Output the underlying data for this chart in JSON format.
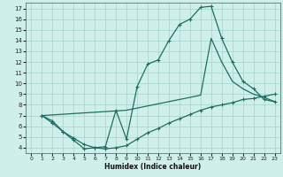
{
  "xlabel": "Humidex (Indice chaleur)",
  "bg_color": "#cff0ea",
  "grid_color": "#aad8d0",
  "line_color": "#1a6e64",
  "xlim": [
    -0.5,
    23.5
  ],
  "ylim": [
    3.5,
    17.5
  ],
  "xticks": [
    0,
    1,
    2,
    3,
    4,
    5,
    6,
    7,
    8,
    9,
    10,
    11,
    12,
    13,
    14,
    15,
    16,
    17,
    18,
    19,
    20,
    21,
    22,
    23
  ],
  "yticks": [
    4,
    5,
    6,
    7,
    8,
    9,
    10,
    11,
    12,
    13,
    14,
    15,
    16,
    17
  ],
  "curve1_x": [
    1,
    2,
    3,
    4,
    5,
    6,
    7,
    8,
    9,
    10,
    11,
    12,
    13,
    14,
    15,
    16,
    17,
    18,
    19,
    20,
    21,
    22,
    23
  ],
  "curve1_y": [
    7.0,
    6.5,
    5.5,
    4.7,
    3.9,
    4.0,
    4.1,
    7.5,
    4.8,
    9.7,
    11.8,
    12.2,
    14.0,
    15.5,
    16.0,
    17.1,
    17.2,
    14.2,
    12.0,
    10.2,
    9.5,
    8.5,
    8.3
  ],
  "curve2_x": [
    1,
    9,
    10,
    11,
    12,
    13,
    14,
    15,
    16,
    17,
    18,
    19,
    20,
    21,
    22,
    23
  ],
  "curve2_y": [
    7.0,
    7.5,
    7.7,
    7.9,
    8.1,
    8.3,
    8.5,
    8.7,
    8.9,
    14.2,
    12.0,
    10.2,
    9.5,
    9.0,
    8.7,
    8.3
  ],
  "curve3_x": [
    1,
    2,
    3,
    4,
    5,
    6,
    7,
    8,
    9,
    10,
    11,
    12,
    13,
    14,
    15,
    16,
    17,
    18,
    19,
    20,
    21,
    22,
    23
  ],
  "curve3_y": [
    7.0,
    6.3,
    5.5,
    4.9,
    4.3,
    4.0,
    3.9,
    4.0,
    4.2,
    4.8,
    5.4,
    5.8,
    6.3,
    6.7,
    7.1,
    7.5,
    7.8,
    8.0,
    8.2,
    8.5,
    8.6,
    8.8,
    9.0
  ]
}
